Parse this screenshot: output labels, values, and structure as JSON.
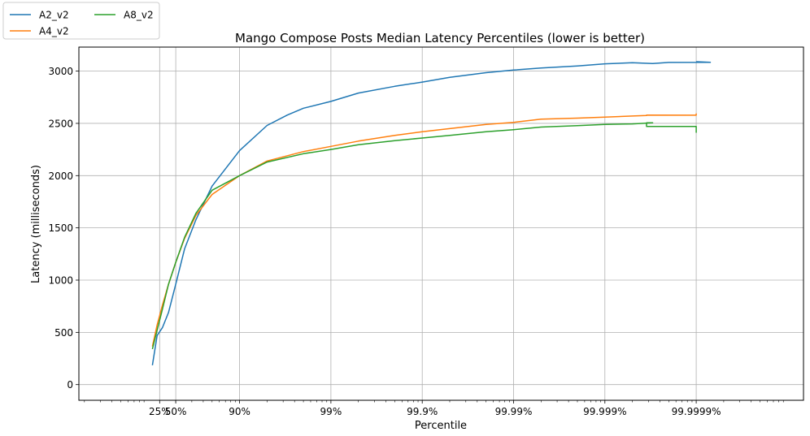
{
  "chart_data": {
    "type": "line",
    "title": "Mango Compose Posts Median Latency Percentiles (lower is better)",
    "xlabel": "Percentile",
    "ylabel": "Latency (milliseconds)",
    "x_scale": "log of 1/(1-p)",
    "x_ticks": [
      {
        "label": "25%",
        "p": 0.25
      },
      {
        "label": "50%",
        "p": 0.5
      },
      {
        "label": "90%",
        "p": 0.9
      },
      {
        "label": "99%",
        "p": 0.99
      },
      {
        "label": "99.9%",
        "p": 0.999
      },
      {
        "label": "99.99%",
        "p": 0.9999
      },
      {
        "label": "99.999%",
        "p": 0.99999
      },
      {
        "label": "99.9999%",
        "p": 0.999999
      }
    ],
    "ylim": [
      -150,
      3230
    ],
    "y_ticks": [
      0,
      500,
      1000,
      1500,
      2000,
      2500,
      3000
    ],
    "grid": true,
    "legend": "outside top-left, 2 columns",
    "series": [
      {
        "name": "A2_v2",
        "color": "#1f77b4",
        "points": [
          [
            0.1,
            185
          ],
          [
            0.2,
            470
          ],
          [
            0.3,
            545
          ],
          [
            0.4,
            690
          ],
          [
            0.5,
            960
          ],
          [
            0.6,
            1300
          ],
          [
            0.7,
            1580
          ],
          [
            0.8,
            1900
          ],
          [
            0.9,
            2240
          ],
          [
            0.95,
            2480
          ],
          [
            0.97,
            2580
          ],
          [
            0.98,
            2645
          ],
          [
            0.99,
            2710
          ],
          [
            0.995,
            2790
          ],
          [
            0.998,
            2855
          ],
          [
            0.999,
            2895
          ],
          [
            0.9995,
            2940
          ],
          [
            0.9998,
            2985
          ],
          [
            0.9999,
            3010
          ],
          [
            0.99995,
            3030
          ],
          [
            0.99998,
            3050
          ],
          [
            0.99999,
            3070
          ],
          [
            0.999995,
            3080
          ],
          [
            0.999997,
            3072
          ],
          [
            0.999998,
            3083
          ],
          [
            0.9999993,
            3085
          ],
          [
            0.999999,
            3090
          ]
        ]
      },
      {
        "name": "A4_v2",
        "color": "#ff7f0e",
        "points": [
          [
            0.1,
            365
          ],
          [
            0.2,
            570
          ],
          [
            0.3,
            760
          ],
          [
            0.4,
            960
          ],
          [
            0.5,
            1170
          ],
          [
            0.6,
            1400
          ],
          [
            0.7,
            1620
          ],
          [
            0.8,
            1820
          ],
          [
            0.9,
            2000
          ],
          [
            0.95,
            2140
          ],
          [
            0.98,
            2230
          ],
          [
            0.99,
            2280
          ],
          [
            0.995,
            2330
          ],
          [
            0.998,
            2385
          ],
          [
            0.999,
            2420
          ],
          [
            0.9995,
            2450
          ],
          [
            0.9998,
            2490
          ],
          [
            0.9999,
            2510
          ],
          [
            0.99995,
            2540
          ],
          [
            0.99998,
            2550
          ],
          [
            0.99999,
            2560
          ],
          [
            0.999995,
            2570
          ],
          [
            0.9999965,
            2575
          ],
          [
            0.9999965,
            2580
          ],
          [
            0.999999,
            2578
          ],
          [
            0.999999,
            2595
          ]
        ]
      },
      {
        "name": "A8_v2",
        "color": "#2ca02c",
        "points": [
          [
            0.1,
            340
          ],
          [
            0.2,
            520
          ],
          [
            0.3,
            720
          ],
          [
            0.4,
            960
          ],
          [
            0.5,
            1170
          ],
          [
            0.6,
            1410
          ],
          [
            0.7,
            1640
          ],
          [
            0.8,
            1860
          ],
          [
            0.9,
            2000
          ],
          [
            0.95,
            2130
          ],
          [
            0.98,
            2210
          ],
          [
            0.99,
            2250
          ],
          [
            0.995,
            2295
          ],
          [
            0.998,
            2335
          ],
          [
            0.999,
            2360
          ],
          [
            0.9995,
            2385
          ],
          [
            0.9998,
            2420
          ],
          [
            0.9999,
            2440
          ],
          [
            0.99995,
            2465
          ],
          [
            0.99998,
            2478
          ],
          [
            0.99999,
            2490
          ],
          [
            0.999995,
            2495
          ],
          [
            0.999997,
            2505
          ],
          [
            0.9999965,
            2505
          ],
          [
            0.9999965,
            2470
          ],
          [
            0.999999,
            2470
          ],
          [
            0.999999,
            2410
          ]
        ]
      }
    ]
  }
}
